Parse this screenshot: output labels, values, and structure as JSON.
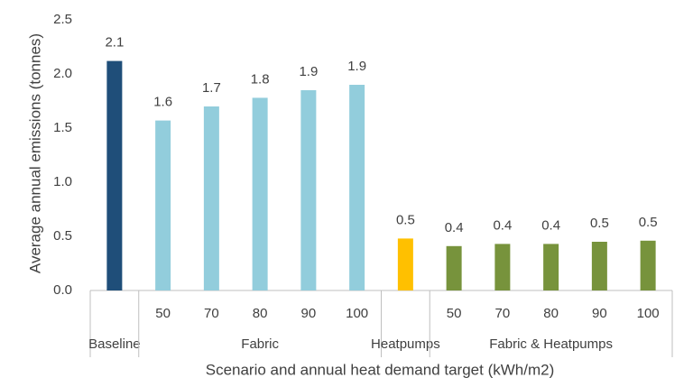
{
  "chart_data": {
    "type": "bar",
    "y_label": "Average annual emissions (tonnes)",
    "x_label": "Scenario and annual heat demand target (kWh/m2)",
    "ylim": [
      0,
      2.5
    ],
    "yticks": [
      {
        "value": 0,
        "label": "0.0"
      },
      0.5,
      {
        "value": 1,
        "label": "1.0"
      },
      1.5,
      {
        "value": 2,
        "label": "2.0"
      },
      2.5
    ],
    "grid": false,
    "groups": [
      {
        "name": "Baseline",
        "color": "#1f4e79",
        "categories": [
          null
        ],
        "values": [
          2.12
        ],
        "value_labels": [
          "2.1"
        ]
      },
      {
        "name": "Fabric",
        "color": "#92cddc",
        "categories": [
          "50",
          "70",
          "80",
          "90",
          "100"
        ],
        "values": [
          1.57,
          1.7,
          1.78,
          1.85,
          1.9
        ],
        "value_labels": [
          "1.6",
          "1.7",
          "1.8",
          "1.9",
          "1.9"
        ]
      },
      {
        "name": "Heatpumps",
        "color": "#ffc000",
        "categories": [
          null
        ],
        "values": [
          0.48
        ],
        "value_labels": [
          "0.5"
        ]
      },
      {
        "name": "Fabric & Heatpumps",
        "color": "#77933c",
        "categories": [
          "50",
          "70",
          "80",
          "90",
          "100"
        ],
        "values": [
          0.41,
          0.43,
          0.43,
          0.45,
          0.46
        ],
        "value_labels": [
          "0.4",
          "0.4",
          "0.4",
          "0.5",
          "0.5"
        ]
      }
    ]
  }
}
